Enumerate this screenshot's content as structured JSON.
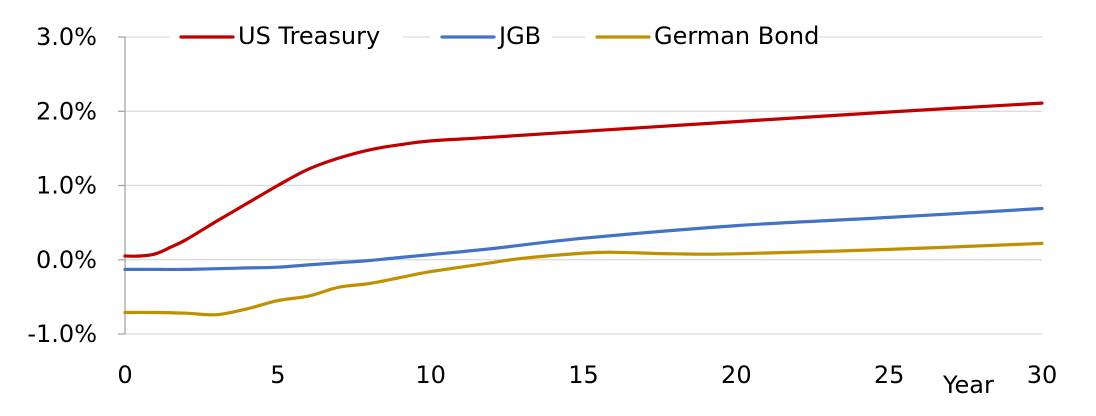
{
  "chart_data": {
    "type": "line",
    "title": "",
    "xlabel": "Year",
    "ylabel": "",
    "xlim": [
      0,
      30
    ],
    "ylim": [
      -1.0,
      3.0
    ],
    "x_ticks": [
      0,
      5,
      10,
      15,
      20,
      25,
      30
    ],
    "y_ticks": [
      -1.0,
      0.0,
      1.0,
      2.0,
      3.0
    ],
    "x_tick_labels": [
      "0",
      "5",
      "10",
      "15",
      "20",
      "25",
      "30"
    ],
    "y_tick_labels": [
      "-1.0%",
      "0.0%",
      "1.0%",
      "2.0%",
      "3.0%"
    ],
    "grid": "horizontal",
    "legend": "top",
    "series": [
      {
        "name": "US Treasury",
        "color": "#c00000",
        "points": [
          [
            0,
            0.05
          ],
          [
            0.5,
            0.05
          ],
          [
            1,
            0.08
          ],
          [
            1.5,
            0.17
          ],
          [
            2,
            0.27
          ],
          [
            3,
            0.52
          ],
          [
            4,
            0.76
          ],
          [
            5,
            1.0
          ],
          [
            6,
            1.22
          ],
          [
            7,
            1.37
          ],
          [
            8,
            1.48
          ],
          [
            9,
            1.55
          ],
          [
            10,
            1.6
          ],
          [
            12,
            1.65
          ],
          [
            15,
            1.73
          ],
          [
            20,
            1.86
          ],
          [
            25,
            1.99
          ],
          [
            30,
            2.11
          ]
        ]
      },
      {
        "name": "JGB",
        "color": "#4472c4",
        "points": [
          [
            0,
            -0.13
          ],
          [
            1,
            -0.13
          ],
          [
            2,
            -0.13
          ],
          [
            3,
            -0.12
          ],
          [
            4,
            -0.11
          ],
          [
            5,
            -0.1
          ],
          [
            6,
            -0.07
          ],
          [
            7,
            -0.04
          ],
          [
            8,
            -0.01
          ],
          [
            9,
            0.03
          ],
          [
            10,
            0.07
          ],
          [
            12,
            0.15
          ],
          [
            15,
            0.29
          ],
          [
            20,
            0.46
          ],
          [
            25,
            0.57
          ],
          [
            30,
            0.69
          ]
        ]
      },
      {
        "name": "German Bond",
        "color": "#bf9000",
        "points": [
          [
            0,
            -0.71
          ],
          [
            1,
            -0.71
          ],
          [
            2,
            -0.72
          ],
          [
            3,
            -0.74
          ],
          [
            4,
            -0.66
          ],
          [
            5,
            -0.55
          ],
          [
            6,
            -0.49
          ],
          [
            7,
            -0.37
          ],
          [
            8,
            -0.32
          ],
          [
            9,
            -0.24
          ],
          [
            10,
            -0.16
          ],
          [
            12,
            -0.04
          ],
          [
            13,
            0.02
          ],
          [
            15,
            0.09
          ],
          [
            16,
            0.1
          ],
          [
            18,
            0.08
          ],
          [
            20,
            0.08
          ],
          [
            25,
            0.14
          ],
          [
            30,
            0.22
          ]
        ]
      }
    ]
  }
}
